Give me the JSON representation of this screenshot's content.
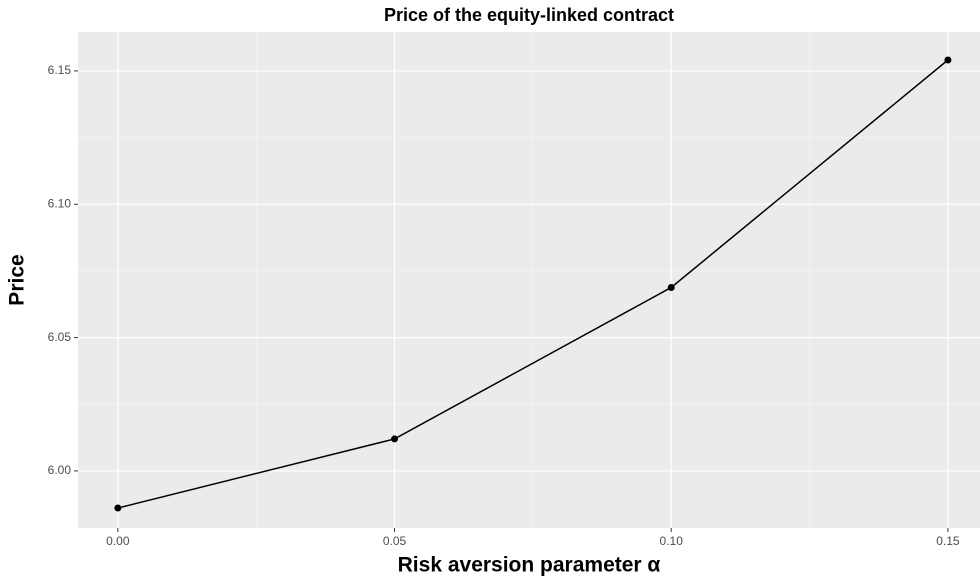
{
  "chart_data": {
    "type": "line",
    "title": "Price of the equity-linked contract",
    "x_label": "Risk aversion parameter α",
    "y_label": "Price",
    "x": [
      0,
      0.05,
      0.1,
      0.15
    ],
    "series": [
      {
        "name": "Price",
        "color": "#000000",
        "values": [
          5.9861,
          6.012,
          6.0688,
          6.1541
        ]
      }
    ],
    "xlim": [
      -0.0072,
      0.1558
    ],
    "ylim": [
      5.9786,
      6.1646
    ],
    "xticks": [
      {
        "value": 0,
        "label": "0.00"
      },
      0.05,
      {
        "value": 0.1,
        "label": "0.10"
      },
      0.15
    ],
    "yticks": [
      {
        "value": 6,
        "label": "6.00"
      },
      6.05,
      {
        "value": 6.1,
        "label": "6.10"
      },
      6.15
    ],
    "grid": true
  }
}
